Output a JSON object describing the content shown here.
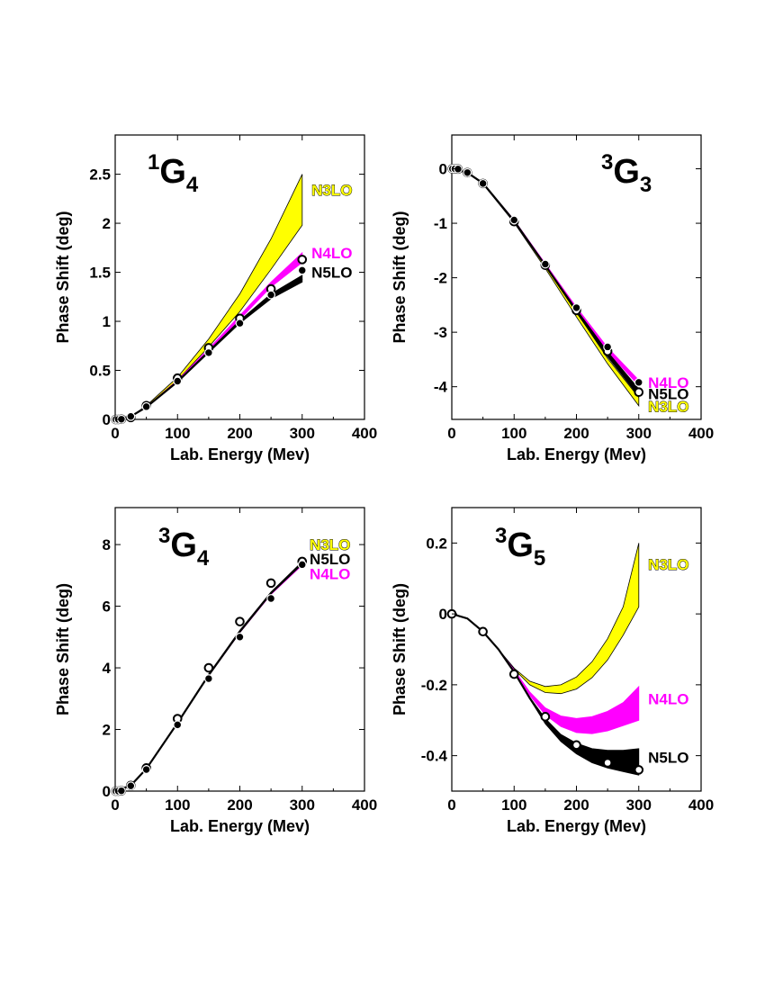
{
  "chart_data": [
    {
      "type": "line",
      "title": {
        "sup": "1",
        "main": "G",
        "sub": "4"
      },
      "xlabel": "Lab. Energy (Mev)",
      "ylabel": "Phase Shift (deg)",
      "xlim": [
        0,
        400
      ],
      "ylim": [
        0,
        2.9
      ],
      "xticks": [
        0,
        100,
        200,
        300,
        400
      ],
      "xtick_labels": [
        "0",
        "100",
        "200",
        "300",
        "400"
      ],
      "yticks": [
        0,
        0.5,
        1,
        1.5,
        2,
        2.5
      ],
      "ytick_labels": [
        "0",
        "0.5",
        "1",
        "1.5",
        "2",
        "2.5"
      ],
      "bands": [
        {
          "name": "N3LO",
          "color": "#ffff00",
          "x": [
            0,
            25,
            50,
            100,
            150,
            200,
            250,
            300
          ],
          "lower": [
            0,
            0.03,
            0.13,
            0.4,
            0.74,
            1.1,
            1.53,
            1.98
          ],
          "upper": [
            0,
            0.03,
            0.14,
            0.43,
            0.82,
            1.28,
            1.84,
            2.5
          ]
        },
        {
          "name": "N4LO",
          "color": "#ff00ff",
          "x": [
            0,
            25,
            50,
            100,
            150,
            200,
            250,
            300
          ],
          "lower": [
            0,
            0.03,
            0.13,
            0.39,
            0.7,
            1.02,
            1.35,
            1.6
          ],
          "upper": [
            0,
            0.03,
            0.13,
            0.4,
            0.72,
            1.06,
            1.4,
            1.7
          ]
        },
        {
          "name": "N5LO",
          "color": "#000000",
          "x": [
            0,
            25,
            50,
            100,
            150,
            200,
            250,
            300
          ],
          "lower": [
            0,
            0.03,
            0.12,
            0.38,
            0.68,
            0.98,
            1.23,
            1.4
          ],
          "upper": [
            0,
            0.03,
            0.13,
            0.39,
            0.7,
            1.01,
            1.28,
            1.47
          ]
        }
      ],
      "points_open": {
        "x": [
          1,
          5,
          10,
          25,
          50,
          100,
          150,
          200,
          250,
          300
        ],
        "y": [
          0,
          0,
          0.002,
          0.02,
          0.14,
          0.42,
          0.73,
          1.03,
          1.33,
          1.63
        ]
      },
      "points_filled": {
        "x": [
          1,
          5,
          10,
          25,
          50,
          100,
          150,
          200,
          250,
          300
        ],
        "y": [
          0,
          0,
          0.002,
          0.03,
          0.13,
          0.39,
          0.68,
          0.98,
          1.27,
          1.52
        ]
      },
      "series_labels": [
        {
          "text": "N3LO",
          "color": "#ffff00",
          "outline": true,
          "x": 315,
          "y": 2.34
        },
        {
          "text": "N4LO",
          "color": "#ff00ff",
          "outline": false,
          "x": 315,
          "y": 1.7
        },
        {
          "text": "N5LO",
          "color": "#000000",
          "outline": false,
          "x": 315,
          "y": 1.5
        }
      ]
    },
    {
      "type": "line",
      "title": {
        "sup": "3",
        "main": "G",
        "sub": "3"
      },
      "xlabel": "Lab. Energy (Mev)",
      "ylabel": "Phase Shift (deg)",
      "xlim": [
        0,
        400
      ],
      "ylim": [
        -4.6,
        0.62
      ],
      "xticks": [
        0,
        100,
        200,
        300,
        400
      ],
      "xtick_labels": [
        "0",
        "100",
        "200",
        "300",
        "400"
      ],
      "yticks": [
        -4,
        -3,
        -2,
        -1,
        0
      ],
      "ytick_labels": [
        "-4",
        "-3",
        "-2",
        "-1",
        "0"
      ],
      "bands": [
        {
          "name": "N3LO",
          "color": "#ffff00",
          "x": [
            0,
            25,
            50,
            100,
            150,
            200,
            250,
            300
          ],
          "lower": [
            0,
            -0.07,
            -0.28,
            -0.99,
            -1.83,
            -2.72,
            -3.58,
            -4.35
          ],
          "upper": [
            0,
            -0.07,
            -0.27,
            -0.96,
            -1.77,
            -2.63,
            -3.48,
            -4.2
          ]
        },
        {
          "name": "N4LO",
          "color": "#ff00ff",
          "x": [
            0,
            25,
            50,
            100,
            150,
            200,
            250,
            300
          ],
          "lower": [
            0,
            -0.07,
            -0.27,
            -0.96,
            -1.78,
            -2.6,
            -3.36,
            -3.98
          ],
          "upper": [
            0,
            -0.07,
            -0.26,
            -0.94,
            -1.74,
            -2.54,
            -3.28,
            -3.88
          ]
        },
        {
          "name": "N5LO",
          "color": "#000000",
          "x": [
            0,
            25,
            50,
            100,
            150,
            200,
            250,
            300
          ],
          "lower": [
            0,
            -0.07,
            -0.27,
            -0.97,
            -1.79,
            -2.64,
            -3.45,
            -4.18
          ],
          "upper": [
            0,
            -0.07,
            -0.26,
            -0.95,
            -1.76,
            -2.58,
            -3.36,
            -4.04
          ]
        }
      ],
      "points_open": {
        "x": [
          1,
          5,
          10,
          25,
          50,
          100,
          150,
          200,
          250,
          300
        ],
        "y": [
          0,
          0,
          -0.005,
          -0.07,
          -0.27,
          -0.97,
          -1.77,
          -2.6,
          -3.35,
          -4.1
        ]
      },
      "points_filled": {
        "x": [
          1,
          5,
          10,
          25,
          50,
          100,
          150,
          200,
          250,
          300
        ],
        "y": [
          0,
          0,
          -0.005,
          -0.07,
          -0.27,
          -0.94,
          -1.75,
          -2.55,
          -3.27,
          -3.92
        ]
      },
      "series_labels": [
        {
          "text": "N4LO",
          "color": "#ff00ff",
          "outline": false,
          "x": 315,
          "y": -3.92
        },
        {
          "text": "N5LO",
          "color": "#000000",
          "outline": false,
          "x": 315,
          "y": -4.13
        },
        {
          "text": "N3LO",
          "color": "#ffff00",
          "outline": true,
          "x": 315,
          "y": -4.36
        }
      ]
    },
    {
      "type": "line",
      "title": {
        "sup": "3",
        "main": "G",
        "sub": "4"
      },
      "xlabel": "Lab. Energy (Mev)",
      "ylabel": "Phase Shift (deg)",
      "xlim": [
        0,
        400
      ],
      "ylim": [
        0,
        9.2
      ],
      "xticks": [
        0,
        100,
        200,
        300,
        400
      ],
      "xtick_labels": [
        "0",
        "100",
        "200",
        "300",
        "400"
      ],
      "yticks": [
        0,
        2,
        4,
        6,
        8
      ],
      "ytick_labels": [
        "0",
        "2",
        "4",
        "6",
        "8"
      ],
      "bands": [
        {
          "name": "N3LO",
          "color": "#ffff00",
          "x": [
            0,
            25,
            50,
            100,
            150,
            200,
            250,
            300
          ],
          "lower": [
            0,
            0.18,
            0.72,
            2.2,
            3.75,
            5.15,
            6.4,
            7.35
          ],
          "upper": [
            0,
            0.18,
            0.74,
            2.24,
            3.8,
            5.22,
            6.46,
            7.45
          ]
        },
        {
          "name": "N4LO",
          "color": "#ff00ff",
          "x": [
            0,
            25,
            50,
            100,
            150,
            200,
            250,
            300
          ],
          "lower": [
            0,
            0.18,
            0.72,
            2.2,
            3.74,
            5.14,
            6.38,
            7.33
          ],
          "upper": [
            0,
            0.18,
            0.73,
            2.22,
            3.77,
            5.18,
            6.42,
            7.4
          ]
        },
        {
          "name": "N5LO",
          "color": "#000000",
          "x": [
            0,
            25,
            50,
            100,
            150,
            200,
            250,
            300
          ],
          "lower": [
            0,
            0.18,
            0.72,
            2.2,
            3.75,
            5.15,
            6.4,
            7.36
          ],
          "upper": [
            0,
            0.18,
            0.73,
            2.22,
            3.78,
            5.2,
            6.45,
            7.43
          ]
        }
      ],
      "points_open": {
        "x": [
          1,
          5,
          10,
          25,
          50,
          100,
          150,
          200,
          250,
          300
        ],
        "y": [
          0,
          0,
          0.01,
          0.18,
          0.75,
          2.35,
          4.0,
          5.5,
          6.75,
          7.45
        ]
      },
      "points_filled": {
        "x": [
          1,
          5,
          10,
          25,
          50,
          100,
          150,
          200,
          250,
          300
        ],
        "y": [
          0,
          0,
          0.01,
          0.17,
          0.7,
          2.15,
          3.65,
          5.0,
          6.25,
          7.35
        ]
      },
      "series_labels": [
        {
          "text": "N3LO",
          "color": "#ffff00",
          "outline": true,
          "x": 312,
          "y": 8.0
        },
        {
          "text": "N5LO",
          "color": "#000000",
          "outline": false,
          "x": 312,
          "y": 7.53
        },
        {
          "text": "N4LO",
          "color": "#ff00ff",
          "outline": false,
          "x": 312,
          "y": 7.06
        }
      ]
    },
    {
      "type": "line",
      "title": {
        "sup": "3",
        "main": "G",
        "sub": "5"
      },
      "xlabel": "Lab. Energy (Mev)",
      "ylabel": "Phase Shift (deg)",
      "xlim": [
        0,
        400
      ],
      "ylim": [
        -0.5,
        0.3
      ],
      "xticks": [
        0,
        100,
        200,
        300,
        400
      ],
      "xtick_labels": [
        "0",
        "100",
        "200",
        "300",
        "400"
      ],
      "yticks": [
        -0.4,
        -0.2,
        0,
        0.2
      ],
      "ytick_labels": [
        "-0.4",
        "-0.2",
        "0",
        "0.2"
      ],
      "bands": [
        {
          "name": "N3LO",
          "color": "#ffff00",
          "x": [
            0,
            25,
            50,
            75,
            100,
            125,
            150,
            175,
            200,
            225,
            250,
            275,
            300
          ],
          "lower": [
            0,
            -0.013,
            -0.05,
            -0.1,
            -0.156,
            -0.2,
            -0.222,
            -0.225,
            -0.212,
            -0.18,
            -0.13,
            -0.06,
            0.02
          ],
          "upper": [
            0,
            -0.013,
            -0.05,
            -0.1,
            -0.153,
            -0.19,
            -0.205,
            -0.2,
            -0.178,
            -0.135,
            -0.07,
            0.02,
            0.2
          ]
        },
        {
          "name": "N4LO",
          "color": "#ff00ff",
          "x": [
            0,
            25,
            50,
            75,
            100,
            125,
            150,
            175,
            200,
            225,
            250,
            275,
            300
          ],
          "lower": [
            0,
            -0.013,
            -0.05,
            -0.1,
            -0.16,
            -0.23,
            -0.285,
            -0.318,
            -0.335,
            -0.338,
            -0.33,
            -0.315,
            -0.3
          ],
          "upper": [
            0,
            -0.013,
            -0.05,
            -0.1,
            -0.158,
            -0.22,
            -0.265,
            -0.288,
            -0.295,
            -0.29,
            -0.275,
            -0.25,
            -0.205
          ]
        },
        {
          "name": "N5LO",
          "color": "#000000",
          "x": [
            0,
            25,
            50,
            75,
            100,
            125,
            150,
            175,
            200,
            225,
            250,
            275,
            300
          ],
          "lower": [
            0,
            -0.013,
            -0.05,
            -0.1,
            -0.165,
            -0.24,
            -0.31,
            -0.36,
            -0.395,
            -0.42,
            -0.435,
            -0.445,
            -0.455
          ],
          "upper": [
            0,
            -0.013,
            -0.05,
            -0.1,
            -0.163,
            -0.235,
            -0.295,
            -0.34,
            -0.365,
            -0.38,
            -0.385,
            -0.385,
            -0.38
          ]
        }
      ],
      "points_open": {
        "x": [
          0,
          50,
          100,
          150,
          200,
          250,
          300
        ],
        "y": [
          0,
          -0.05,
          -0.17,
          -0.29,
          -0.37,
          -0.42,
          -0.44
        ]
      },
      "points_filled": null,
      "series_labels": [
        {
          "text": "N3LO",
          "color": "#ffff00",
          "outline": true,
          "x": 315,
          "y": 0.14
        },
        {
          "text": "N4LO",
          "color": "#ff00ff",
          "outline": false,
          "x": 315,
          "y": -0.24
        },
        {
          "text": "N5LO",
          "color": "#000000",
          "outline": false,
          "x": 315,
          "y": -0.405
        }
      ]
    }
  ]
}
